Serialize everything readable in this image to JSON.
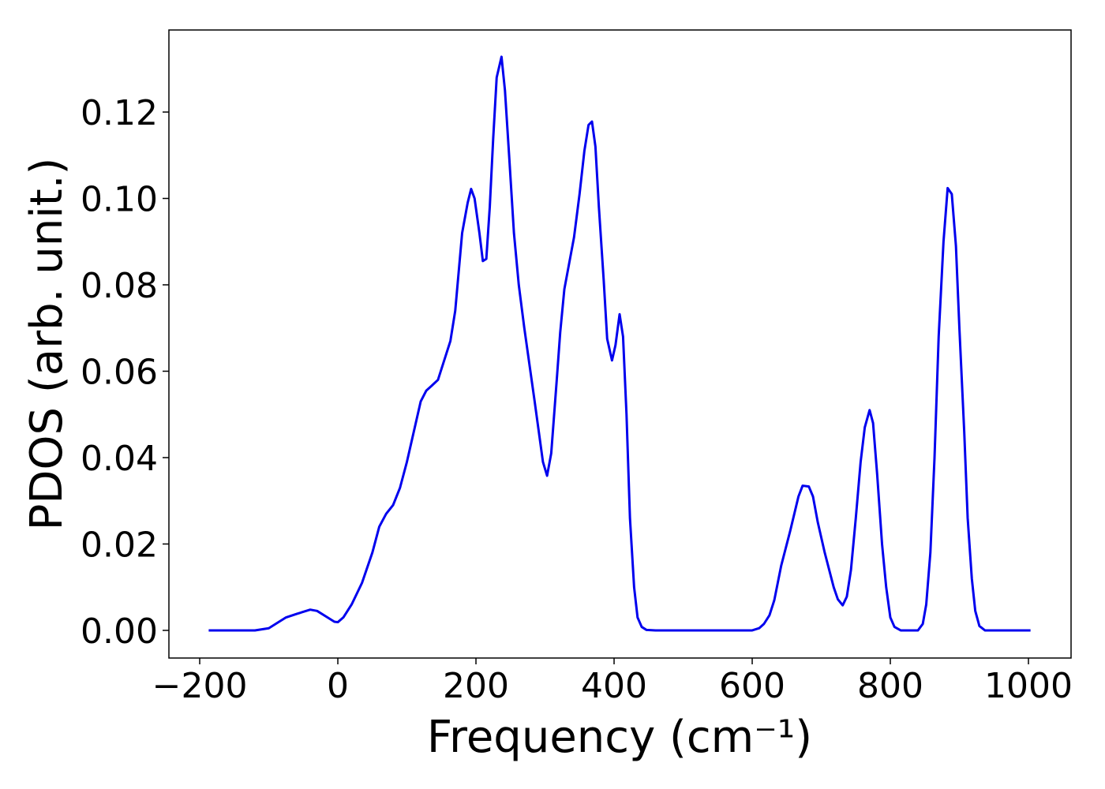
{
  "chart_data": {
    "type": "line",
    "xlabel": "Frequency (cm⁻¹)",
    "ylabel": "PDOS (arb. unit.)",
    "xlim": [
      -244.6,
      1061.7
    ],
    "ylim": [
      -0.0064,
      0.139
    ],
    "xticks": [
      {
        "value": -200,
        "label": "−200"
      },
      0,
      200,
      400,
      600,
      800,
      1000
    ],
    "yticks": [
      {
        "value": 0,
        "label": "0.00"
      },
      {
        "value": 0.02,
        "label": "0.02"
      },
      {
        "value": 0.04,
        "label": "0.04"
      },
      {
        "value": 0.06,
        "label": "0.06"
      },
      {
        "value": 0.08,
        "label": "0.08"
      },
      {
        "value": 0.1,
        "label": "0.10"
      },
      {
        "value": 0.12,
        "label": "0.12"
      }
    ],
    "grid": false,
    "series": [
      {
        "color": "#0000ee",
        "x": [
          -187,
          -120,
          -100,
          -90,
          -75,
          -60,
          -40,
          -30,
          -15,
          -5,
          0,
          8,
          20,
          35,
          50,
          60,
          70,
          80,
          90,
          100,
          110,
          120,
          128,
          135,
          145,
          155,
          163,
          170,
          180,
          188,
          193,
          198,
          205,
          210,
          215,
          220,
          225,
          230,
          237,
          242,
          248,
          255,
          262,
          270,
          285,
          297,
          303,
          309,
          317,
          322,
          328,
          335,
          342,
          350,
          357,
          363,
          368,
          373,
          378,
          385,
          390,
          397,
          402,
          408,
          413,
          418,
          423,
          429,
          434,
          440,
          447,
          460,
          600,
          610,
          617,
          625,
          632,
          642,
          655,
          667,
          673,
          682,
          688,
          695,
          705,
          718,
          724,
          731,
          737,
          743,
          750,
          757,
          763,
          770,
          775,
          781,
          788,
          794,
          800,
          806,
          815,
          840,
          847,
          852,
          858,
          864,
          870,
          877,
          883,
          889,
          895,
          900,
          907,
          912,
          918,
          923,
          929,
          937,
          1003
        ],
        "values": [
          0,
          0,
          0.0005,
          0.0015,
          0.003,
          0.0038,
          0.0048,
          0.0045,
          0.003,
          0.002,
          0.0019,
          0.003,
          0.006,
          0.011,
          0.018,
          0.024,
          0.027,
          0.029,
          0.033,
          0.039,
          0.046,
          0.053,
          0.0555,
          0.0565,
          0.058,
          0.063,
          0.067,
          0.074,
          0.092,
          0.099,
          0.1022,
          0.1,
          0.092,
          0.0855,
          0.086,
          0.098,
          0.114,
          0.128,
          0.1328,
          0.125,
          0.11,
          0.092,
          0.08,
          0.07,
          0.053,
          0.039,
          0.0358,
          0.041,
          0.058,
          0.069,
          0.079,
          0.085,
          0.091,
          0.101,
          0.111,
          0.117,
          0.1178,
          0.112,
          0.098,
          0.081,
          0.0675,
          0.0625,
          0.066,
          0.0732,
          0.068,
          0.05,
          0.026,
          0.01,
          0.003,
          0.0008,
          0.0001,
          0,
          0,
          0.0005,
          0.0015,
          0.0035,
          0.007,
          0.015,
          0.023,
          0.031,
          0.0335,
          0.0333,
          0.031,
          0.025,
          0.018,
          0.01,
          0.0072,
          0.0058,
          0.0078,
          0.014,
          0.026,
          0.039,
          0.047,
          0.051,
          0.048,
          0.036,
          0.02,
          0.01,
          0.003,
          0.0008,
          0,
          0,
          0.0015,
          0.006,
          0.018,
          0.04,
          0.068,
          0.09,
          0.1024,
          0.101,
          0.089,
          0.07,
          0.046,
          0.026,
          0.012,
          0.0045,
          0.001,
          0,
          0
        ]
      }
    ]
  }
}
